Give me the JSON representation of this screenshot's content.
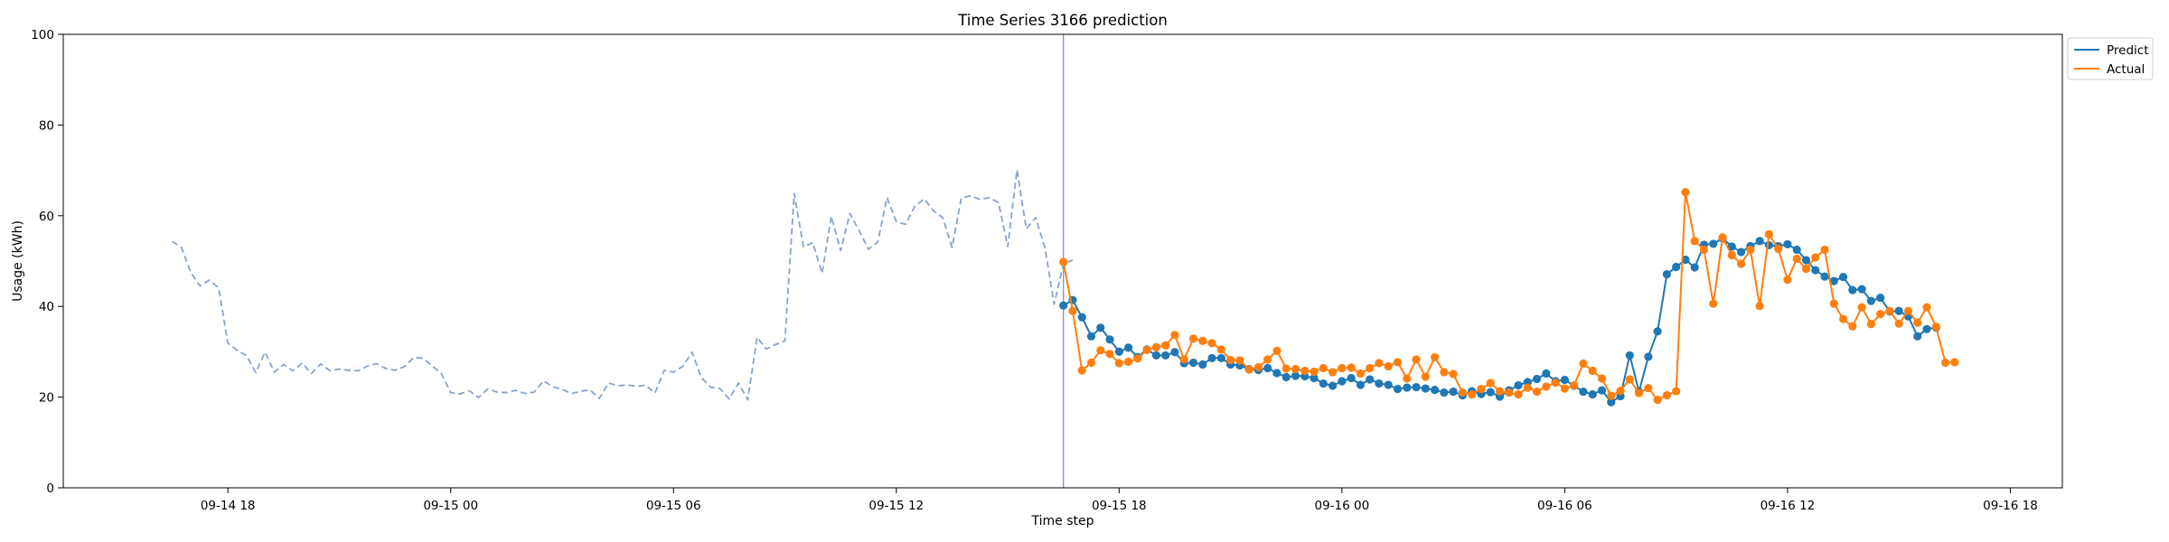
{
  "chart_data": {
    "type": "line",
    "title": "Time Series 3166 prediction",
    "xlabel": "Time step",
    "ylabel": "Usage (kWh)",
    "ylim": [
      0,
      100
    ],
    "yticks": [
      0,
      20,
      40,
      60,
      80,
      100
    ],
    "xlim": [
      "2024-09-14 13:34",
      "2024-09-16 19:24"
    ],
    "xticks": [
      {
        "t": "2024-09-14 18:00",
        "label": "09-14 18"
      },
      {
        "t": "2024-09-15 00:00",
        "label": "09-15 00"
      },
      {
        "t": "2024-09-15 06:00",
        "label": "09-15 06"
      },
      {
        "t": "2024-09-15 12:00",
        "label": "09-15 12"
      },
      {
        "t": "2024-09-15 18:00",
        "label": "09-15 18"
      },
      {
        "t": "2024-09-16 00:00",
        "label": "09-16 00"
      },
      {
        "t": "2024-09-16 06:00",
        "label": "09-16 06"
      },
      {
        "t": "2024-09-16 12:00",
        "label": "09-16 12"
      },
      {
        "t": "2024-09-16 18:00",
        "label": "09-16 18"
      }
    ],
    "grid": false,
    "legend_position": "upper right outside",
    "vline": {
      "t": "2024-09-15 16:30",
      "color": "#7b97c9"
    },
    "series": [
      {
        "name": "",
        "style": "dashed",
        "color": "#86a4cc",
        "start": "2024-09-14 16:30",
        "step_minutes": 15,
        "values": [
          54.3,
          53.0,
          47.5,
          44.5,
          45.8,
          44.1,
          31.9,
          30.3,
          29.2,
          25.4,
          29.9,
          25.5,
          27.2,
          25.8,
          27.5,
          25.2,
          27.3,
          25.8,
          26.2,
          25.9,
          25.8,
          26.8,
          27.4,
          26.3,
          25.9,
          26.7,
          28.7,
          28.6,
          26.9,
          25.2,
          21.0,
          20.7,
          21.4,
          19.9,
          21.8,
          21.1,
          21.0,
          21.5,
          20.8,
          21.1,
          23.6,
          22.3,
          21.7,
          20.8,
          21.3,
          21.6,
          19.7,
          23.1,
          22.5,
          22.7,
          22.4,
          22.6,
          20.9,
          25.9,
          25.5,
          26.8,
          29.9,
          24.3,
          22.2,
          21.9,
          19.6,
          23.1,
          19.4,
          33.2,
          30.6,
          31.6,
          32.4,
          64.9,
          53.1,
          54.1,
          47.3,
          59.9,
          52.3,
          60.5,
          56.7,
          52.6,
          54.2,
          64.0,
          58.7,
          58.1,
          62.1,
          63.7,
          61.1,
          59.6,
          53.0,
          63.9,
          64.4,
          63.6,
          64.0,
          62.9,
          53.2,
          70.1,
          57.1,
          59.6,
          53.0,
          40.5,
          49.4,
          50.2
        ]
      },
      {
        "name": "Predict",
        "style": "solid-markers",
        "color": "#1f77b4",
        "start": "2024-09-15 16:30",
        "step_minutes": 15,
        "values": [
          40.2,
          41.4,
          37.6,
          33.4,
          35.3,
          32.7,
          30.0,
          30.9,
          28.8,
          30.5,
          29.2,
          29.2,
          29.9,
          27.5,
          27.6,
          27.2,
          28.6,
          28.6,
          27.2,
          27.0,
          26.2,
          26.0,
          26.4,
          25.3,
          24.4,
          24.7,
          24.6,
          24.2,
          23.0,
          22.5,
          23.5,
          24.2,
          22.7,
          23.9,
          23.0,
          22.7,
          21.8,
          22.1,
          22.2,
          21.9,
          21.6,
          21.0,
          21.2,
          20.4,
          21.3,
          20.7,
          21.1,
          20.1,
          21.5,
          22.6,
          23.3,
          24.0,
          25.2,
          23.5,
          23.8,
          22.5,
          21.2,
          20.6,
          21.5,
          18.9,
          20.2,
          29.2,
          21.2,
          28.9,
          34.5,
          47.1,
          48.7,
          50.3,
          48.6,
          53.6,
          53.8,
          55.0,
          53.2,
          52.0,
          53.3,
          54.4,
          53.5,
          53.3,
          53.7,
          52.5,
          50.2,
          48.0,
          46.6,
          45.6,
          46.5,
          43.6,
          43.8,
          41.2,
          41.9,
          38.9,
          39.0,
          37.8,
          33.4,
          35.0,
          35.3
        ]
      },
      {
        "name": "Actual",
        "style": "solid-markers",
        "color": "#ff7f0e",
        "start": "2024-09-15 16:30",
        "step_minutes": 15,
        "values": [
          49.8,
          39.0,
          25.9,
          27.6,
          30.3,
          29.5,
          27.5,
          27.8,
          28.5,
          30.4,
          31.0,
          31.4,
          33.7,
          28.3,
          32.9,
          32.4,
          31.9,
          30.5,
          28.2,
          28.1,
          26.1,
          26.6,
          28.3,
          30.2,
          26.3,
          26.2,
          25.8,
          25.6,
          26.4,
          25.5,
          26.4,
          26.5,
          25.2,
          26.4,
          27.5,
          26.8,
          27.7,
          24.1,
          28.3,
          24.5,
          28.8,
          25.5,
          25.1,
          21.0,
          20.6,
          21.8,
          23.1,
          21.3,
          21.0,
          20.6,
          22.1,
          21.2,
          22.3,
          23.2,
          21.9,
          22.6,
          27.4,
          25.8,
          24.1,
          20.3,
          21.4,
          23.9,
          20.9,
          22.0,
          19.4,
          20.4,
          21.3,
          65.2,
          54.4,
          52.5,
          40.6,
          55.2,
          51.3,
          49.4,
          52.5,
          40.1,
          55.9,
          52.7,
          45.9,
          50.5,
          48.3,
          50.8,
          52.5,
          40.6,
          37.2,
          35.6,
          39.8,
          36.1,
          38.3,
          39.0,
          36.2,
          39.0,
          36.4,
          39.8,
          35.5,
          27.6,
          27.7
        ]
      }
    ]
  }
}
